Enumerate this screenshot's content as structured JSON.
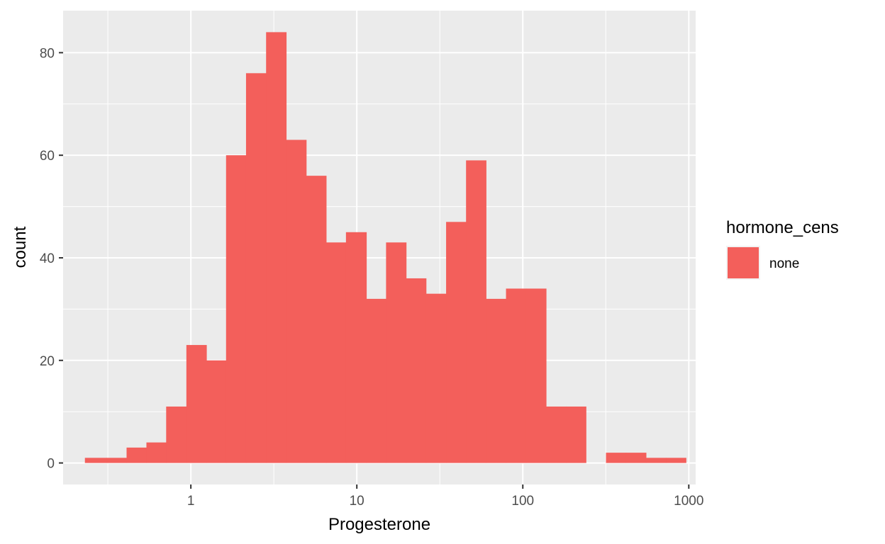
{
  "chart_data": {
    "type": "bar",
    "subtype": "histogram",
    "title": "",
    "xlabel": "Progesterone",
    "ylabel": "count",
    "x_scale": "log10",
    "xlim": [
      0.17,
      1100
    ],
    "ylim": [
      -4.2,
      88.2
    ],
    "x_ticks": [
      {
        "value": 1,
        "label": "1"
      },
      {
        "value": 10,
        "label": "10"
      },
      {
        "value": 100,
        "label": "100"
      },
      {
        "value": 1000,
        "label": "1000"
      }
    ],
    "y_ticks": [
      {
        "value": 0,
        "label": "0"
      },
      {
        "value": 20,
        "label": "20"
      },
      {
        "value": 40,
        "label": "40"
      },
      {
        "value": 60,
        "label": "60"
      },
      {
        "value": 80,
        "label": "80"
      }
    ],
    "grid": true,
    "legend": {
      "title": "hormone_cens",
      "position": "right",
      "entries": [
        {
          "label": "none",
          "color": "#F35F5B"
        }
      ]
    },
    "series": [
      {
        "name": "none",
        "color": "#F35F5B",
        "bins": [
          {
            "x_start": 0.23,
            "x_end": 0.31,
            "count": 1
          },
          {
            "x_start": 0.31,
            "x_end": 0.41,
            "count": 1
          },
          {
            "x_start": 0.41,
            "x_end": 0.54,
            "count": 3
          },
          {
            "x_start": 0.54,
            "x_end": 0.71,
            "count": 4
          },
          {
            "x_start": 0.71,
            "x_end": 0.94,
            "count": 11
          },
          {
            "x_start": 0.94,
            "x_end": 1.24,
            "count": 23
          },
          {
            "x_start": 1.24,
            "x_end": 1.63,
            "count": 20
          },
          {
            "x_start": 1.63,
            "x_end": 2.15,
            "count": 60
          },
          {
            "x_start": 2.15,
            "x_end": 2.84,
            "count": 76
          },
          {
            "x_start": 2.84,
            "x_end": 3.75,
            "count": 84
          },
          {
            "x_start": 3.75,
            "x_end": 4.95,
            "count": 63
          },
          {
            "x_start": 4.95,
            "x_end": 6.53,
            "count": 56
          },
          {
            "x_start": 6.53,
            "x_end": 8.6,
            "count": 43
          },
          {
            "x_start": 8.6,
            "x_end": 11.4,
            "count": 45
          },
          {
            "x_start": 11.4,
            "x_end": 15.0,
            "count": 32
          },
          {
            "x_start": 15.0,
            "x_end": 19.8,
            "count": 43
          },
          {
            "x_start": 19.8,
            "x_end": 26.1,
            "count": 36
          },
          {
            "x_start": 26.1,
            "x_end": 34.5,
            "count": 33
          },
          {
            "x_start": 34.5,
            "x_end": 45.5,
            "count": 47
          },
          {
            "x_start": 45.5,
            "x_end": 60.0,
            "count": 59
          },
          {
            "x_start": 60.0,
            "x_end": 79.2,
            "count": 32
          },
          {
            "x_start": 79.2,
            "x_end": 104.5,
            "count": 34
          },
          {
            "x_start": 104.5,
            "x_end": 138,
            "count": 34
          },
          {
            "x_start": 138,
            "x_end": 182,
            "count": 11
          },
          {
            "x_start": 182,
            "x_end": 240,
            "count": 11
          },
          {
            "x_start": 240,
            "x_end": 317,
            "count": 0
          },
          {
            "x_start": 317,
            "x_end": 418,
            "count": 2
          },
          {
            "x_start": 418,
            "x_end": 552,
            "count": 2
          },
          {
            "x_start": 552,
            "x_end": 728,
            "count": 1
          },
          {
            "x_start": 728,
            "x_end": 961,
            "count": 1
          }
        ]
      }
    ]
  }
}
